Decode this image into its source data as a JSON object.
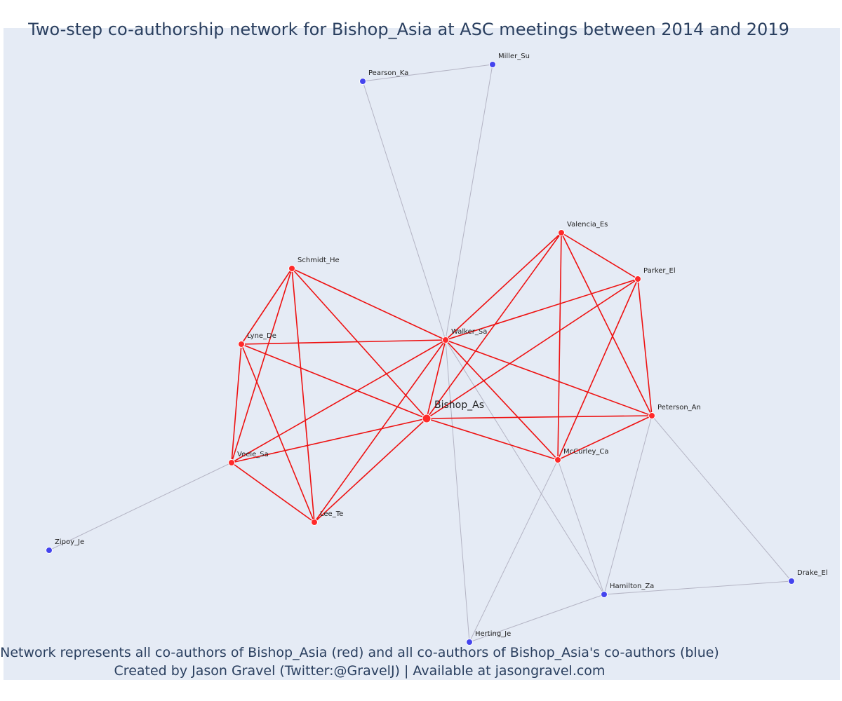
{
  "title": "Two-step co-authorship network for Bishop_Asia at ASC meetings between 2014 and 2019",
  "footer": {
    "line1": "Network represents all co-authors of Bishop_Asia (red) and all co-authors of Bishop_Asia's co-authors (blue)",
    "line2": "Created by Jason Gravel (Twitter:@GravelJ) | Available at jasongravel.com"
  },
  "colors": {
    "background": "#e5ebf5",
    "coauthor": "#ff2a2a",
    "second_step": "#4444ee",
    "red_edge": "#ee1111",
    "grey_edge": "#b4b4c4",
    "text": "#2a3f5f"
  },
  "nodes": [
    {
      "id": "Bishop_As",
      "group": "ego"
    },
    {
      "id": "Walker_Sa",
      "group": "coauthor"
    },
    {
      "id": "Schmidt_He",
      "group": "coauthor"
    },
    {
      "id": "Lyne_De",
      "group": "coauthor"
    },
    {
      "id": "Veele_Sa",
      "group": "coauthor"
    },
    {
      "id": "Lee_Te",
      "group": "coauthor"
    },
    {
      "id": "Valencia_Es",
      "group": "coauthor"
    },
    {
      "id": "Parker_El",
      "group": "coauthor"
    },
    {
      "id": "Peterson_An",
      "group": "coauthor"
    },
    {
      "id": "McCurley_Ca",
      "group": "coauthor"
    },
    {
      "id": "Pearson_Ka",
      "group": "second_step"
    },
    {
      "id": "Miller_Su",
      "group": "second_step"
    },
    {
      "id": "Zipoy_Je",
      "group": "second_step"
    },
    {
      "id": "Hamilton_Za",
      "group": "second_step"
    },
    {
      "id": "Drake_El",
      "group": "second_step"
    },
    {
      "id": "Herting_Je",
      "group": "second_step"
    }
  ],
  "edges": [
    [
      "Bishop_As",
      "Walker_Sa",
      "red"
    ],
    [
      "Bishop_As",
      "Schmidt_He",
      "red"
    ],
    [
      "Bishop_As",
      "Lyne_De",
      "red"
    ],
    [
      "Bishop_As",
      "Veele_Sa",
      "red"
    ],
    [
      "Bishop_As",
      "Lee_Te",
      "red"
    ],
    [
      "Bishop_As",
      "Valencia_Es",
      "red"
    ],
    [
      "Bishop_As",
      "Parker_El",
      "red"
    ],
    [
      "Bishop_As",
      "Peterson_An",
      "red"
    ],
    [
      "Bishop_As",
      "McCurley_Ca",
      "red"
    ],
    [
      "Walker_Sa",
      "Schmidt_He",
      "red"
    ],
    [
      "Walker_Sa",
      "Lyne_De",
      "red"
    ],
    [
      "Walker_Sa",
      "Veele_Sa",
      "red"
    ],
    [
      "Walker_Sa",
      "Lee_Te",
      "red"
    ],
    [
      "Walker_Sa",
      "Valencia_Es",
      "red"
    ],
    [
      "Walker_Sa",
      "Parker_El",
      "red"
    ],
    [
      "Walker_Sa",
      "Peterson_An",
      "red"
    ],
    [
      "Walker_Sa",
      "McCurley_Ca",
      "red"
    ],
    [
      "Schmidt_He",
      "Lyne_De",
      "red"
    ],
    [
      "Schmidt_He",
      "Veele_Sa",
      "red"
    ],
    [
      "Schmidt_He",
      "Lee_Te",
      "red"
    ],
    [
      "Lyne_De",
      "Veele_Sa",
      "red"
    ],
    [
      "Lyne_De",
      "Lee_Te",
      "red"
    ],
    [
      "Veele_Sa",
      "Lee_Te",
      "red"
    ],
    [
      "Valencia_Es",
      "Parker_El",
      "red"
    ],
    [
      "Valencia_Es",
      "Peterson_An",
      "red"
    ],
    [
      "Valencia_Es",
      "McCurley_Ca",
      "red"
    ],
    [
      "Parker_El",
      "Peterson_An",
      "red"
    ],
    [
      "Parker_El",
      "McCurley_Ca",
      "red"
    ],
    [
      "Peterson_An",
      "McCurley_Ca",
      "red"
    ],
    [
      "Pearson_Ka",
      "Miller_Su",
      "grey"
    ],
    [
      "Pearson_Ka",
      "Walker_Sa",
      "grey"
    ],
    [
      "Miller_Su",
      "Walker_Sa",
      "grey"
    ],
    [
      "Walker_Sa",
      "Herting_Je",
      "grey"
    ],
    [
      "Walker_Sa",
      "Hamilton_Za",
      "grey"
    ],
    [
      "McCurley_Ca",
      "Hamilton_Za",
      "grey"
    ],
    [
      "McCurley_Ca",
      "Herting_Je",
      "grey"
    ],
    [
      "Peterson_An",
      "Hamilton_Za",
      "grey"
    ],
    [
      "Peterson_An",
      "Drake_El",
      "grey"
    ],
    [
      "Hamilton_Za",
      "Drake_El",
      "grey"
    ],
    [
      "Hamilton_Za",
      "Herting_Je",
      "grey"
    ],
    [
      "Veele_Sa",
      "Zipoy_Je",
      "grey"
    ]
  ]
}
